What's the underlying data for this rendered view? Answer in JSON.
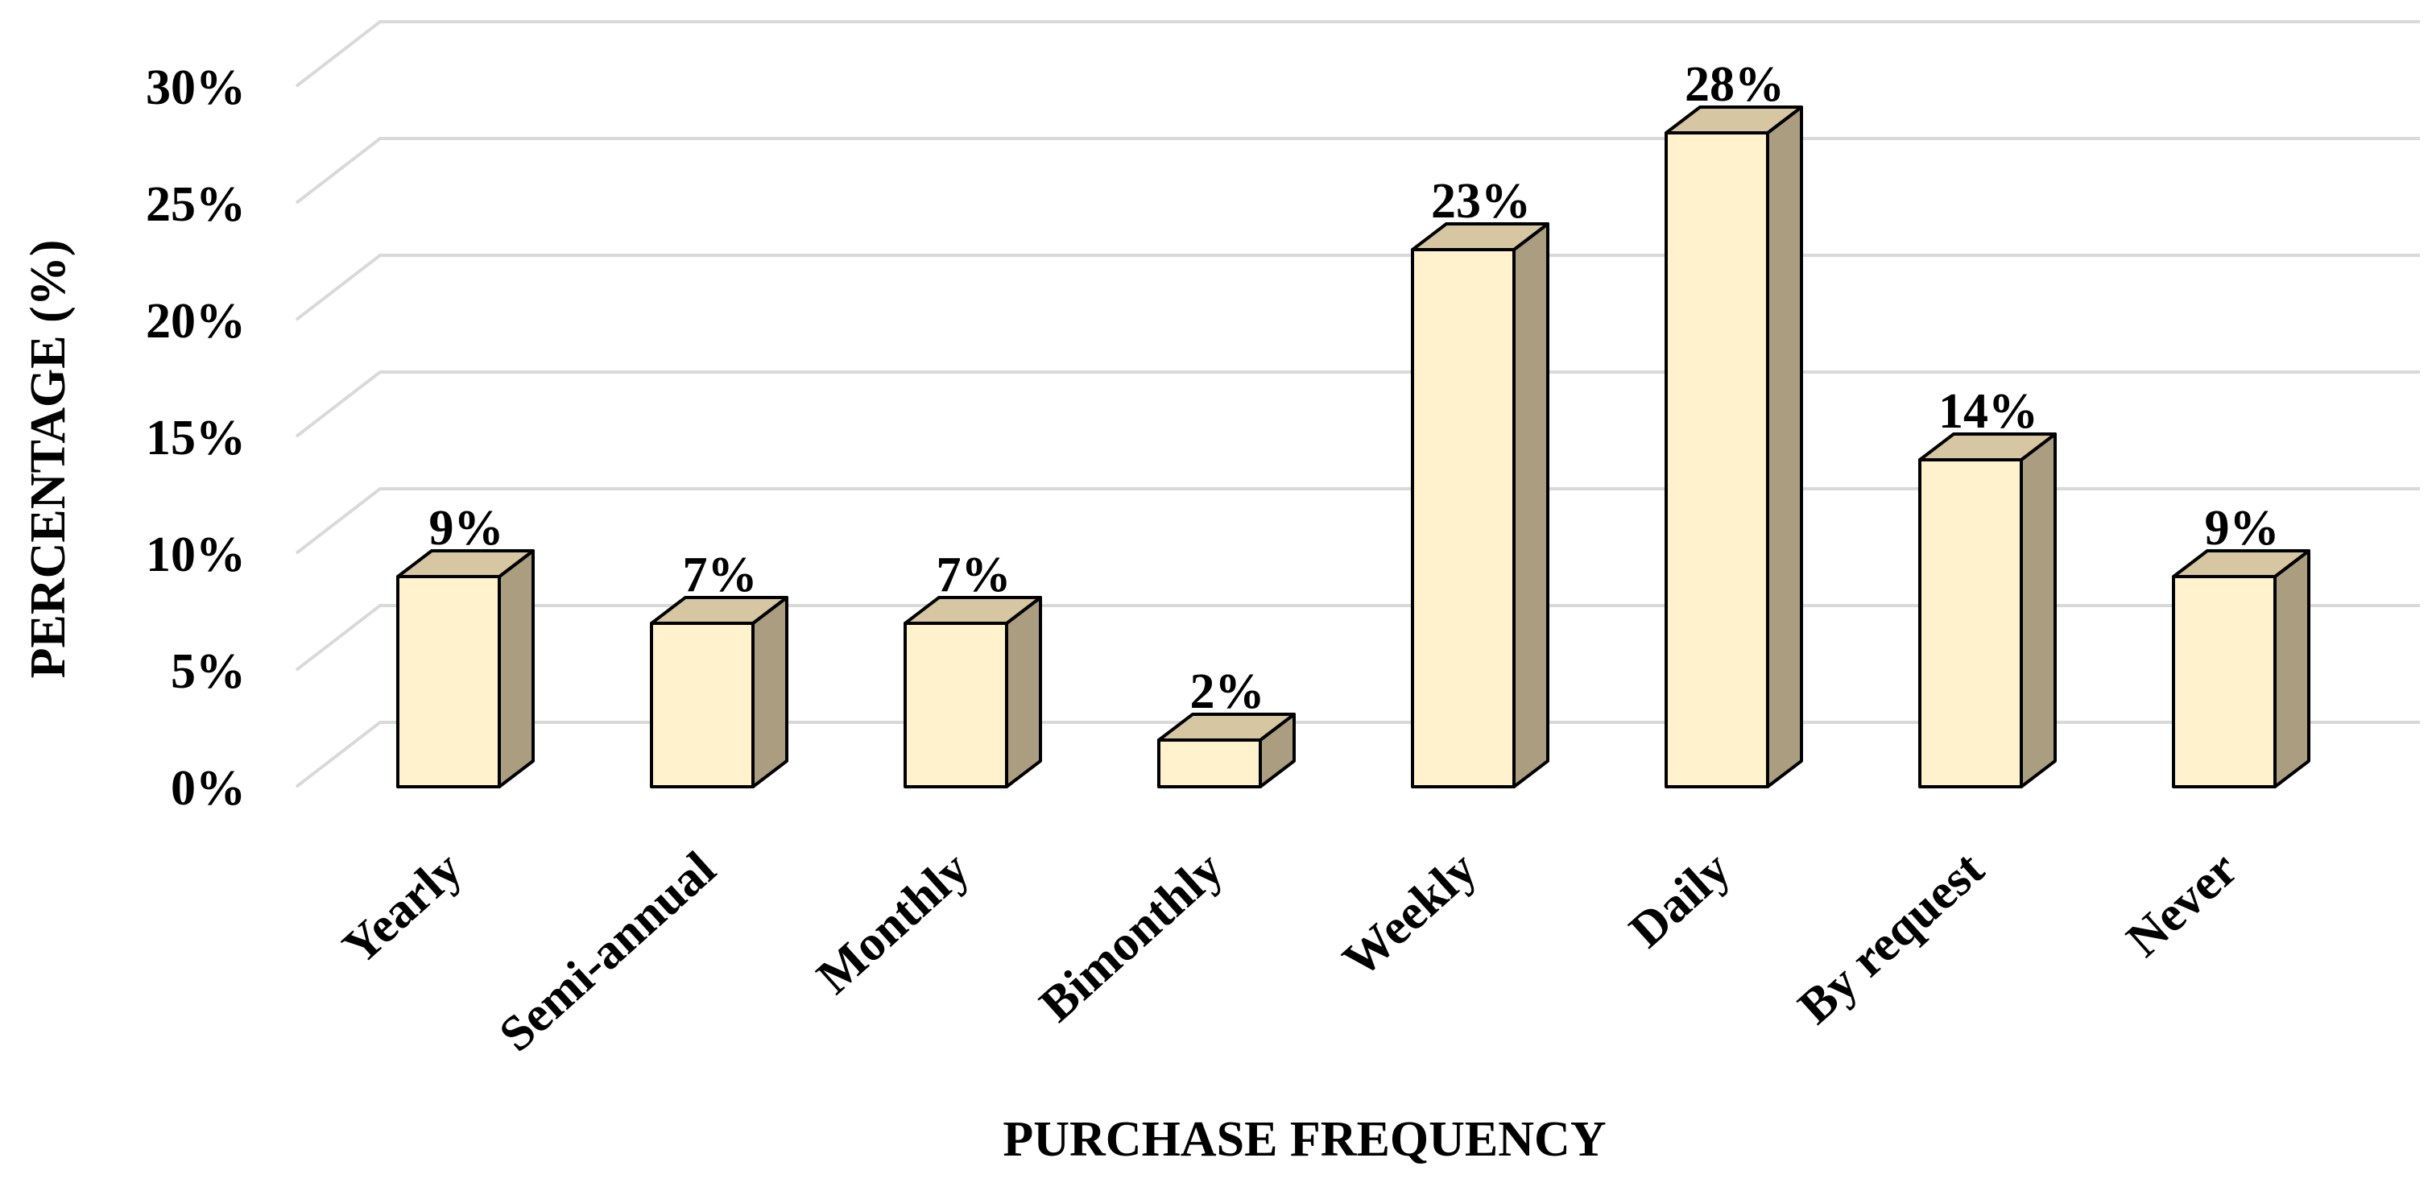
{
  "chart_data": {
    "type": "bar",
    "style": "3d-column",
    "categories": [
      "Yearly",
      "Semi-annual",
      "Monthly",
      "Bimonthly",
      "Weekly",
      "Daily",
      "By request",
      "Never"
    ],
    "values": [
      9,
      7,
      7,
      2,
      23,
      28,
      14,
      9
    ],
    "data_labels": [
      "9%",
      "7%",
      "7%",
      "2%",
      "23%",
      "28%",
      "14%",
      "9%"
    ],
    "xlabel": "PURCHASE FREQUENCY",
    "ylabel": "PERCENTAGE (%)",
    "ylim": [
      0,
      30
    ],
    "yticks": [
      0,
      5,
      10,
      15,
      20,
      25,
      30
    ],
    "ytick_labels": [
      "0%",
      "5%",
      "10%",
      "15%",
      "20%",
      "25%",
      "30%"
    ],
    "grid": true,
    "legend": "none",
    "colors": {
      "front": "#fff2cc",
      "top": "#d6c6a2",
      "side": "#ab9d80",
      "outline": "#000000",
      "grid": "#d9d9d9"
    }
  }
}
